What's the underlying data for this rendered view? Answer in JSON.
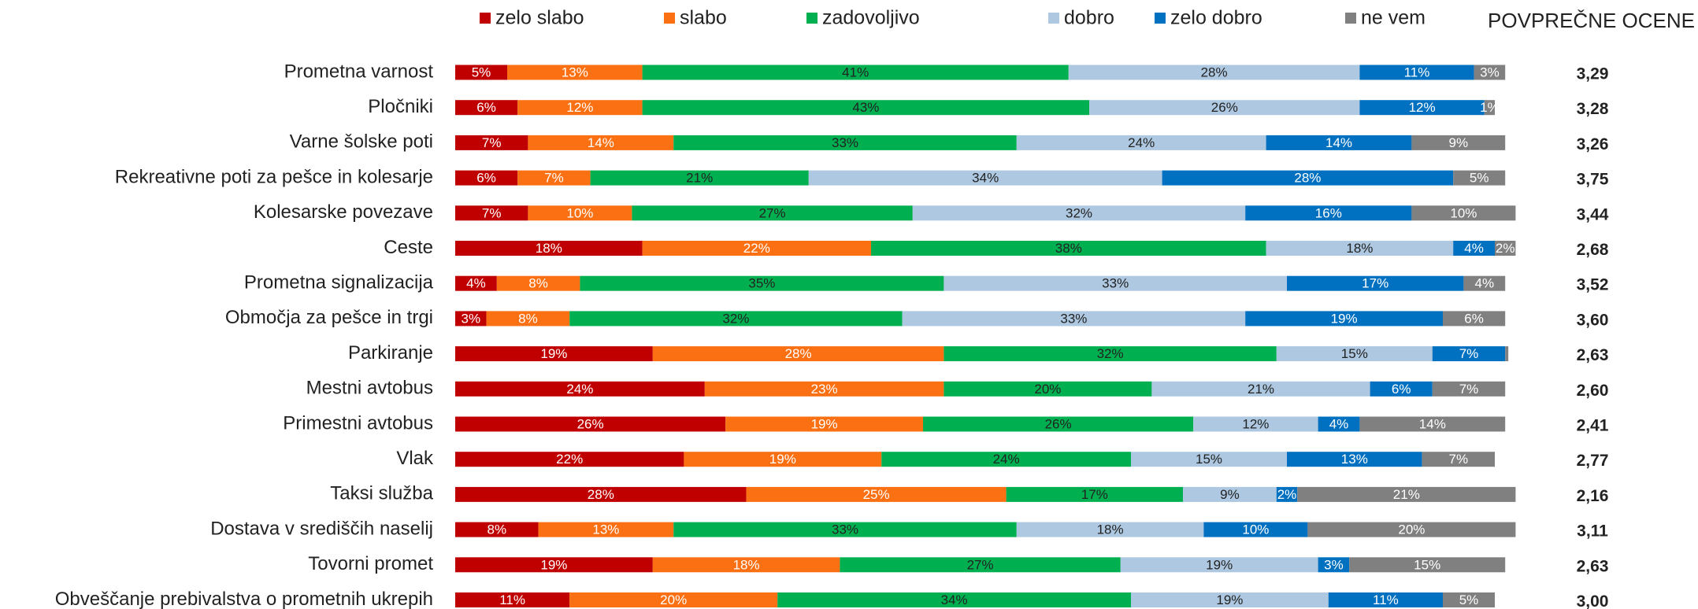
{
  "chart_data": {
    "type": "stacked_bar_horizontal",
    "categories": [
      "Prometna varnost",
      "Pločniki",
      "Varne šolske poti",
      "Rekreativne poti za pešce in kolesarje",
      "Kolesarske povezave",
      "Ceste",
      "Prometna signalizacija",
      "Območja za pešce in trgi",
      "Parkiranje",
      "Mestni avtobus",
      "Primestni avtobus",
      "Vlak",
      "Taksi služba",
      "Dostava v središčih naselij",
      "Tovorni promet",
      "Obveščanje prebivalstva o prometnih ukrepih"
    ],
    "xlim": [
      0,
      100
    ],
    "series": [
      {
        "name": "zelo slabo",
        "color": "#c00000",
        "values": [
          5,
          6,
          7,
          6,
          7,
          18,
          4,
          3,
          19,
          24,
          26,
          22,
          28,
          8,
          19,
          11
        ],
        "value_labels": [
          "5%",
          "6%",
          "7%",
          "6%",
          "7%",
          "18%",
          "4%",
          "3%",
          "19%",
          "24%",
          "26%",
          "22%",
          "28%",
          "8%",
          "19%",
          "11%"
        ]
      },
      {
        "name": "slabo",
        "color": "#fa7013",
        "values": [
          13,
          12,
          14,
          7,
          10,
          22,
          8,
          8,
          28,
          23,
          19,
          19,
          25,
          13,
          18,
          20
        ],
        "value_labels": [
          "13%",
          "12%",
          "14%",
          "7%",
          "10%",
          "22%",
          "8%",
          "8%",
          "28%",
          "23%",
          "19%",
          "19%",
          "25%",
          "13%",
          "18%",
          "20%"
        ]
      },
      {
        "name": "zadovoljivo",
        "color": "#00b050",
        "values": [
          41,
          43,
          33,
          21,
          27,
          38,
          35,
          32,
          32,
          20,
          26,
          24,
          17,
          33,
          27,
          34
        ],
        "value_labels": [
          "41%",
          "43%",
          "33%",
          "21%",
          "27%",
          "38%",
          "35%",
          "32%",
          "32%",
          "20%",
          "26%",
          "24%",
          "17%",
          "33%",
          "27%",
          "34%"
        ]
      },
      {
        "name": "dobro",
        "color": "#adc8e0",
        "values": [
          28,
          26,
          24,
          34,
          32,
          18,
          33,
          33,
          15,
          21,
          12,
          15,
          9,
          18,
          19,
          19
        ],
        "value_labels": [
          "28%",
          "26%",
          "24%",
          "34%",
          "32%",
          "18%",
          "33%",
          "33%",
          "15%",
          "21%",
          "12%",
          "15%",
          "9%",
          "18%",
          "19%",
          "19%"
        ]
      },
      {
        "name": "zelo dobro",
        "color": "#0070c0",
        "values": [
          11,
          12,
          14,
          28,
          16,
          4,
          17,
          19,
          7,
          6,
          4,
          13,
          2,
          10,
          3,
          11
        ],
        "value_labels": [
          "11%",
          "12%",
          "14%",
          "28%",
          "16%",
          "4%",
          "17%",
          "19%",
          "7%",
          "6%",
          "4%",
          "13%",
          "2%",
          "10%",
          "3%",
          "11%"
        ]
      },
      {
        "name": "ne vem",
        "color": "#808080",
        "values": [
          3,
          1,
          9,
          5,
          10,
          2,
          4,
          6,
          0.3,
          7,
          14,
          7,
          21,
          20,
          15,
          5
        ],
        "value_labels": [
          "3%",
          "1%",
          "9%",
          "5%",
          "10%",
          "2%",
          "4%",
          "6%",
          null,
          "7%",
          "14%",
          "7%",
          "21%",
          "20%",
          "15%",
          "5%"
        ]
      }
    ],
    "average_title": "POVPREČNE OCENE",
    "averages": [
      3.29,
      3.28,
      3.26,
      3.75,
      3.44,
      2.68,
      3.52,
      3.6,
      2.63,
      2.6,
      2.41,
      2.77,
      2.16,
      3.11,
      2.63,
      3.0
    ],
    "average_labels": [
      "3,29",
      "3,28",
      "3,26",
      "3,75",
      "3,44",
      "2,68",
      "3,52",
      "3,60",
      "2,63",
      "2,60",
      "2,41",
      "2,77",
      "2,16",
      "3,11",
      "2,63",
      "3,00"
    ]
  }
}
